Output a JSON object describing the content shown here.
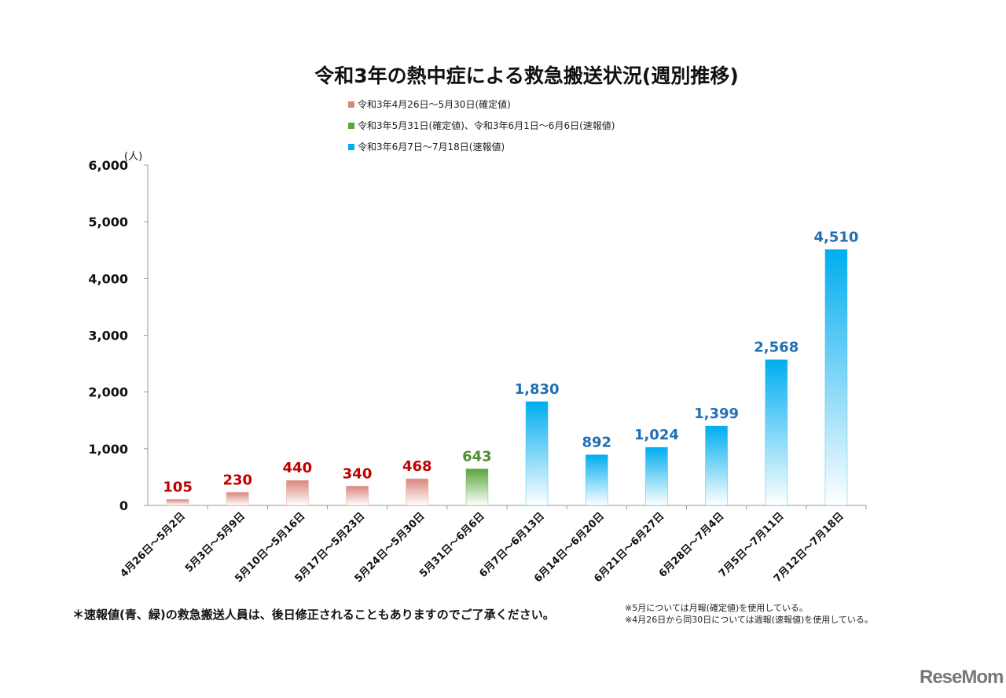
{
  "chart_data": {
    "type": "bar",
    "title": "令和3年の熱中症による救急搬送状況(週別推移)",
    "ylabel": "(人)",
    "ylim": [
      0,
      6000
    ],
    "yticks": [
      "0",
      "1,000",
      "2,000",
      "3,000",
      "4,000",
      "5,000",
      "6,000"
    ],
    "grid": false,
    "legend_placement": "top-center",
    "categories": [
      "4月26日～5月2日",
      "5月3日～5月9日",
      "5月10日～5月16日",
      "5月17日～5月23日",
      "5月24日～5月30日",
      "5月31日～6月6日",
      "6月7日～6月13日",
      "6月14日～6月20日",
      "6月21日～6月27日",
      "6月28日～7月4日",
      "7月5日～7月11日",
      "7月12日～7月18日"
    ],
    "values": [
      105,
      230,
      440,
      340,
      468,
      643,
      1830,
      892,
      1024,
      1399,
      2568,
      4510
    ],
    "value_labels": [
      "105",
      "230",
      "440",
      "340",
      "468",
      "643",
      "1,830",
      "892",
      "1,024",
      "1,399",
      "2,568",
      "4,510"
    ],
    "group": [
      0,
      0,
      0,
      0,
      0,
      1,
      2,
      2,
      2,
      2,
      2,
      2
    ],
    "series": [
      {
        "name": "令和3年4月26日～5月30日(確定値)",
        "color": "#d9877d",
        "label_color": "#c00000"
      },
      {
        "name": "令和3年5月31日(確定値)、令和3年6月1日～6月6日(速報値)",
        "color": "#5aa53c",
        "label_color": "#4e8f2f"
      },
      {
        "name": "令和3年6月7日～7月18日(速報値)",
        "color": "#00adef",
        "label_color": "#1f6fb5"
      }
    ]
  },
  "footnote": "＊速報値(青、緑)の救急搬送人員は、後日修正されることもありますのでご了承ください。",
  "notes": [
    "※5月については月報(確定値)を使用している。",
    "※4月26日から同30日については週報(速報値)を使用している。"
  ],
  "logo": "ReseMom"
}
